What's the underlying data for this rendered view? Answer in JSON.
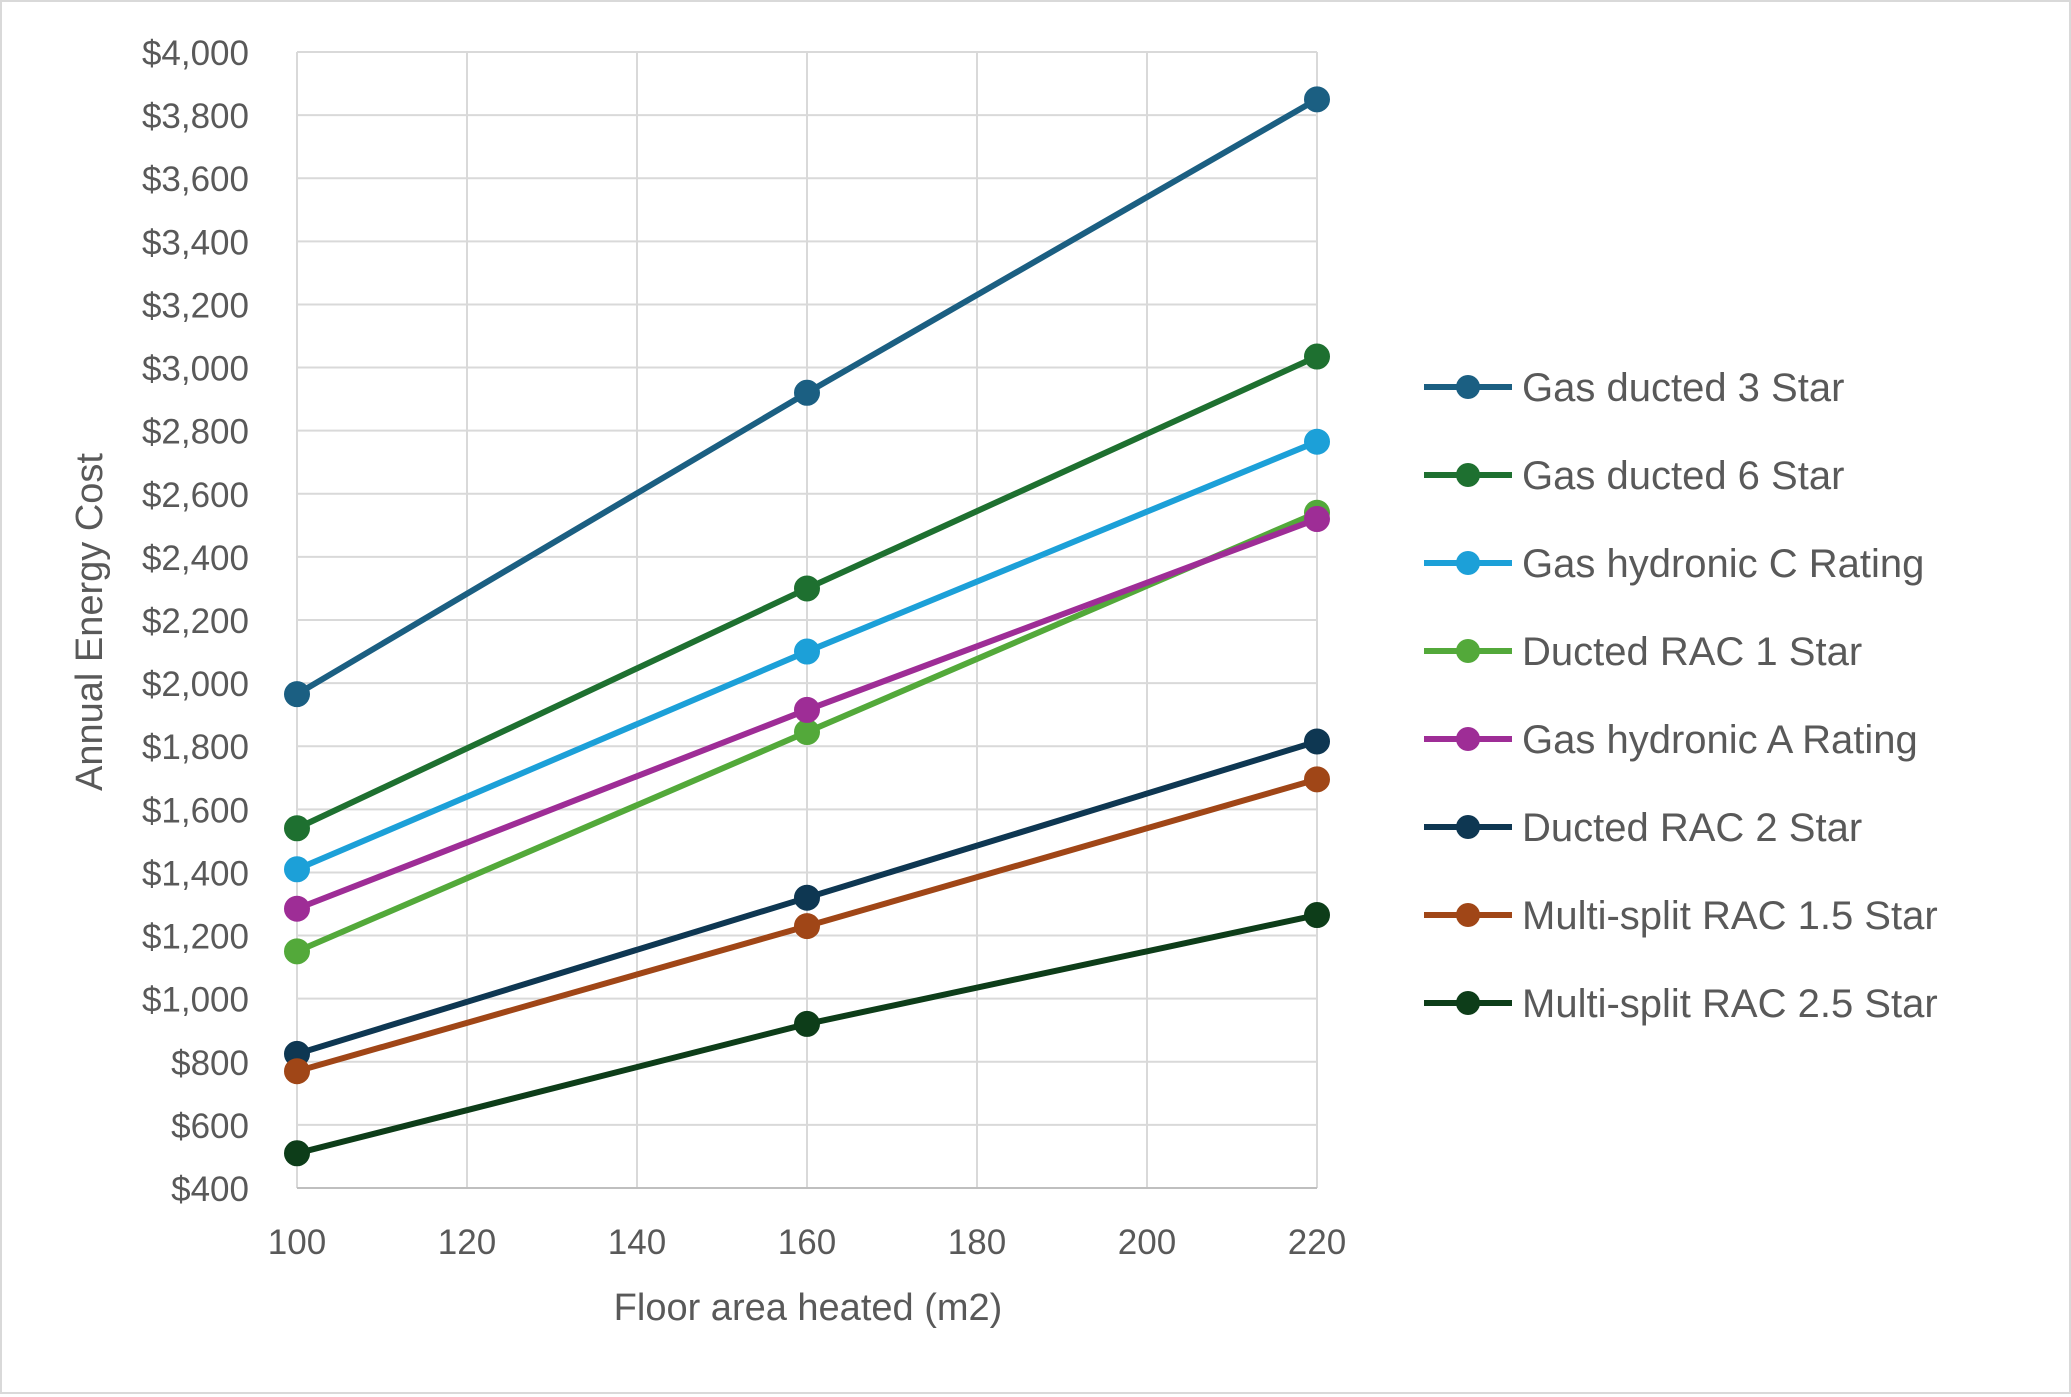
{
  "chart_data": {
    "type": "line",
    "xlabel": "Floor area heated (m2)",
    "ylabel": "Annual Energy Cost",
    "xlim": [
      100,
      220
    ],
    "ylim": [
      400,
      4000
    ],
    "x_ticks": [
      "100",
      "120",
      "140",
      "160",
      "180",
      "200",
      "220"
    ],
    "y_ticks": [
      "$400",
      "$600",
      "$800",
      "$1,000",
      "$1,200",
      "$1,400",
      "$1,600",
      "$1,800",
      "$2,000",
      "$2,200",
      "$2,400",
      "$2,600",
      "$2,800",
      "$3,000",
      "$3,200",
      "$3,400",
      "$3,600",
      "$3,800",
      "$4,000"
    ],
    "grid": true,
    "legend_position": "right",
    "x": [
      100,
      160,
      220
    ],
    "series": [
      {
        "name": "Gas ducted 3 Star",
        "color": "#1b5f82",
        "values": [
          1965,
          2920,
          3850
        ]
      },
      {
        "name": "Gas ducted 6 Star",
        "color": "#1e7030",
        "values": [
          1540,
          2300,
          3035
        ]
      },
      {
        "name": "Gas hydronic C Rating",
        "color": "#1ca0d8",
        "values": [
          1410,
          2100,
          2765
        ]
      },
      {
        "name": "Ducted RAC 1 Star",
        "color": "#53a93a",
        "values": [
          1150,
          1845,
          2540
        ]
      },
      {
        "name": "Gas hydronic A Rating",
        "color": "#9e2d96",
        "values": [
          1285,
          1915,
          2520
        ]
      },
      {
        "name": "Ducted RAC 2 Star",
        "color": "#0e3752",
        "values": [
          825,
          1320,
          1815
        ]
      },
      {
        "name": "Multi-split RAC 1.5 Star",
        "color": "#a04617",
        "values": [
          770,
          1230,
          1695
        ]
      },
      {
        "name": "Multi-split RAC 2.5 Star",
        "color": "#0d3d19",
        "values": [
          510,
          920,
          1265
        ]
      }
    ]
  }
}
